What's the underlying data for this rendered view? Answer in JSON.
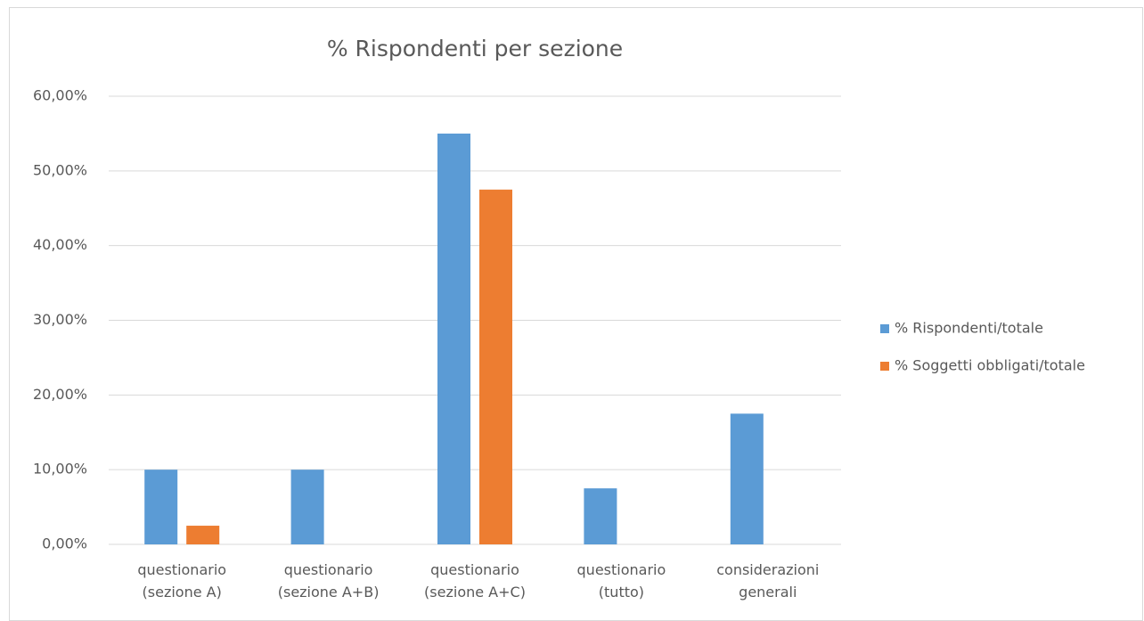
{
  "chart_data": {
    "type": "bar",
    "title": "% Rispondenti per sezione",
    "categories": [
      "questionario (sezione A)",
      "questionario (sezione A+B)",
      "questionario (sezione A+C)",
      "questionario (tutto)",
      "considerazioni generali"
    ],
    "series": [
      {
        "name": "% Rispondenti/totale",
        "color": "#5b9bd5",
        "values": [
          10,
          10,
          55,
          7.5,
          17.5
        ]
      },
      {
        "name": "% Soggetti obbligati/totale",
        "color": "#ed7d31",
        "values": [
          2.5,
          0,
          47.5,
          0,
          0
        ]
      }
    ],
    "ylim": [
      0,
      60
    ],
    "yticks": [
      {
        "value": 0,
        "label": "0,00%"
      },
      {
        "value": 10,
        "label": "10,00%"
      },
      {
        "value": 20,
        "label": "20,00%"
      },
      {
        "value": 30,
        "label": "30,00%"
      },
      {
        "value": 40,
        "label": "40,00%"
      },
      {
        "value": 50,
        "label": "50,00%"
      },
      {
        "value": 60,
        "label": "60,00%"
      }
    ],
    "grid": true,
    "legend": "right"
  }
}
